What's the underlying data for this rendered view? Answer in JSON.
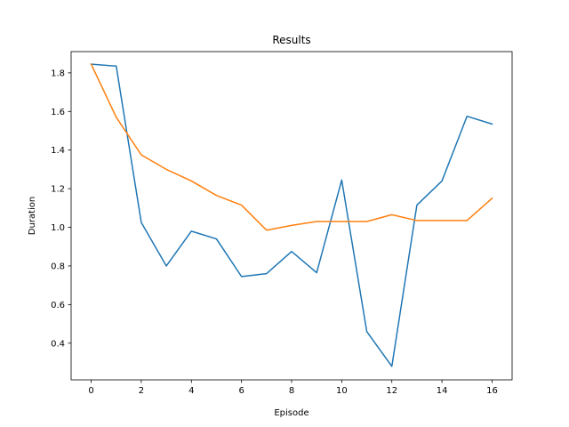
{
  "chart_data": {
    "type": "line",
    "title": "Results",
    "xlabel": "Episode",
    "ylabel": "Duration",
    "xlim": [
      -0.8,
      16.8
    ],
    "ylim": [
      0.21,
      1.91
    ],
    "xticks": [
      0,
      2,
      4,
      6,
      8,
      10,
      12,
      14,
      16
    ],
    "yticks": [
      0.4,
      0.6,
      0.8,
      1.0,
      1.2,
      1.4,
      1.6,
      1.8
    ],
    "grid": false,
    "legend": "none",
    "x": [
      0,
      1,
      2,
      3,
      4,
      5,
      6,
      7,
      8,
      9,
      10,
      11,
      12,
      13,
      14,
      15,
      16
    ],
    "series": [
      {
        "color": "#1f77b4",
        "values": [
          1.845,
          1.835,
          1.025,
          0.8,
          0.98,
          0.94,
          0.745,
          0.76,
          0.875,
          0.765,
          1.245,
          0.46,
          0.28,
          1.115,
          1.24,
          1.575,
          1.535
        ]
      },
      {
        "color": "#ff7f0e",
        "values": [
          1.845,
          1.57,
          1.375,
          1.3,
          1.24,
          1.165,
          1.115,
          0.985,
          1.01,
          1.03,
          1.03,
          1.03,
          1.065,
          1.035,
          1.035,
          1.035,
          1.15
        ]
      }
    ]
  }
}
